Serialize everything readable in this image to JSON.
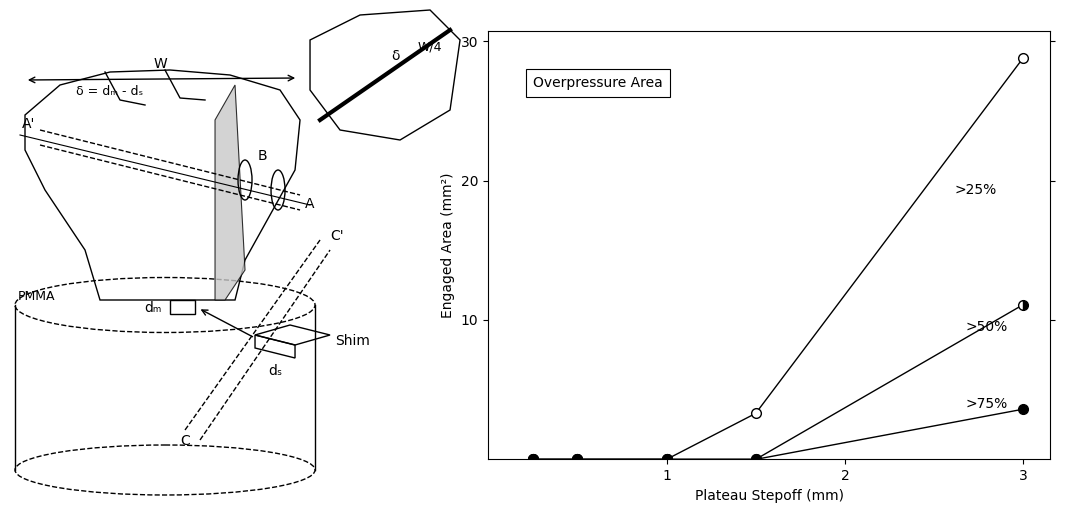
{
  "diagram": {
    "labels": {
      "delta_formula": "δ = dₘ - dₛ",
      "width": "W",
      "quarter_width": "W/4",
      "delta": "δ",
      "axis_a_prime": "A'",
      "axis_a": "A",
      "hole_b": "B",
      "axis_c_prime": "C'",
      "axis_c": "C",
      "step_depth": "dₘ",
      "shim": "Shim",
      "shim_depth": "dₛ",
      "potting": "PMMA"
    }
  },
  "chart_data": {
    "type": "line",
    "title": "Overpressure Area",
    "x_label": "Plateau Stepoff (mm)",
    "y_label": "Engaged Area (mm²)",
    "xlim": [
      0,
      3.15
    ],
    "xticks": [
      1,
      2,
      3
    ],
    "ylim": [
      0,
      30.7
    ],
    "yticks": [
      10,
      20,
      30
    ],
    "series": [
      {
        "name": ">25%",
        "color": "#000000",
        "marker": "circle_open",
        "x": [
          0.25,
          0.5,
          1,
          1.5,
          3
        ],
        "values": [
          0,
          0,
          0,
          3.3,
          28.8
        ]
      },
      {
        "name": ">50%",
        "color": "#000000",
        "marker": "circle_half",
        "x": [
          0.25,
          0.5,
          1,
          1.5,
          3
        ],
        "values": [
          0,
          0,
          0,
          0,
          11.1
        ]
      },
      {
        "name": ">75%",
        "color": "#000000",
        "marker": "circle_filled",
        "x": [
          0.25,
          0.5,
          1,
          1.5,
          3
        ],
        "values": [
          0,
          0,
          0,
          0,
          3.6
        ]
      }
    ]
  }
}
